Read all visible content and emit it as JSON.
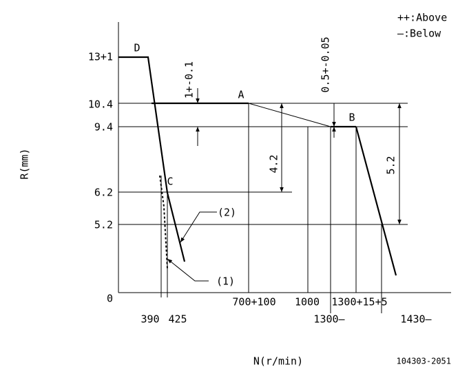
{
  "legend": {
    "above": "++:Above",
    "below": "—:Below"
  },
  "axes": {
    "y_label": "R(mm)",
    "x_label": "N(r/min)"
  },
  "y_labels": [
    "13+1",
    "10.4",
    "9.4",
    "6.2",
    "5.2",
    "0"
  ],
  "x_labels": [
    "390",
    "425",
    "700+100",
    "1000",
    "1300+15+5",
    "1300—",
    "1430—"
  ],
  "points": [
    "D",
    "A",
    "B",
    "C"
  ],
  "callouts": [
    "(1)",
    "(2)"
  ],
  "dimensions": [
    "1+-0.1",
    "0.5+-0.05",
    "4.2",
    "5.2"
  ],
  "code": "104303-2051"
}
